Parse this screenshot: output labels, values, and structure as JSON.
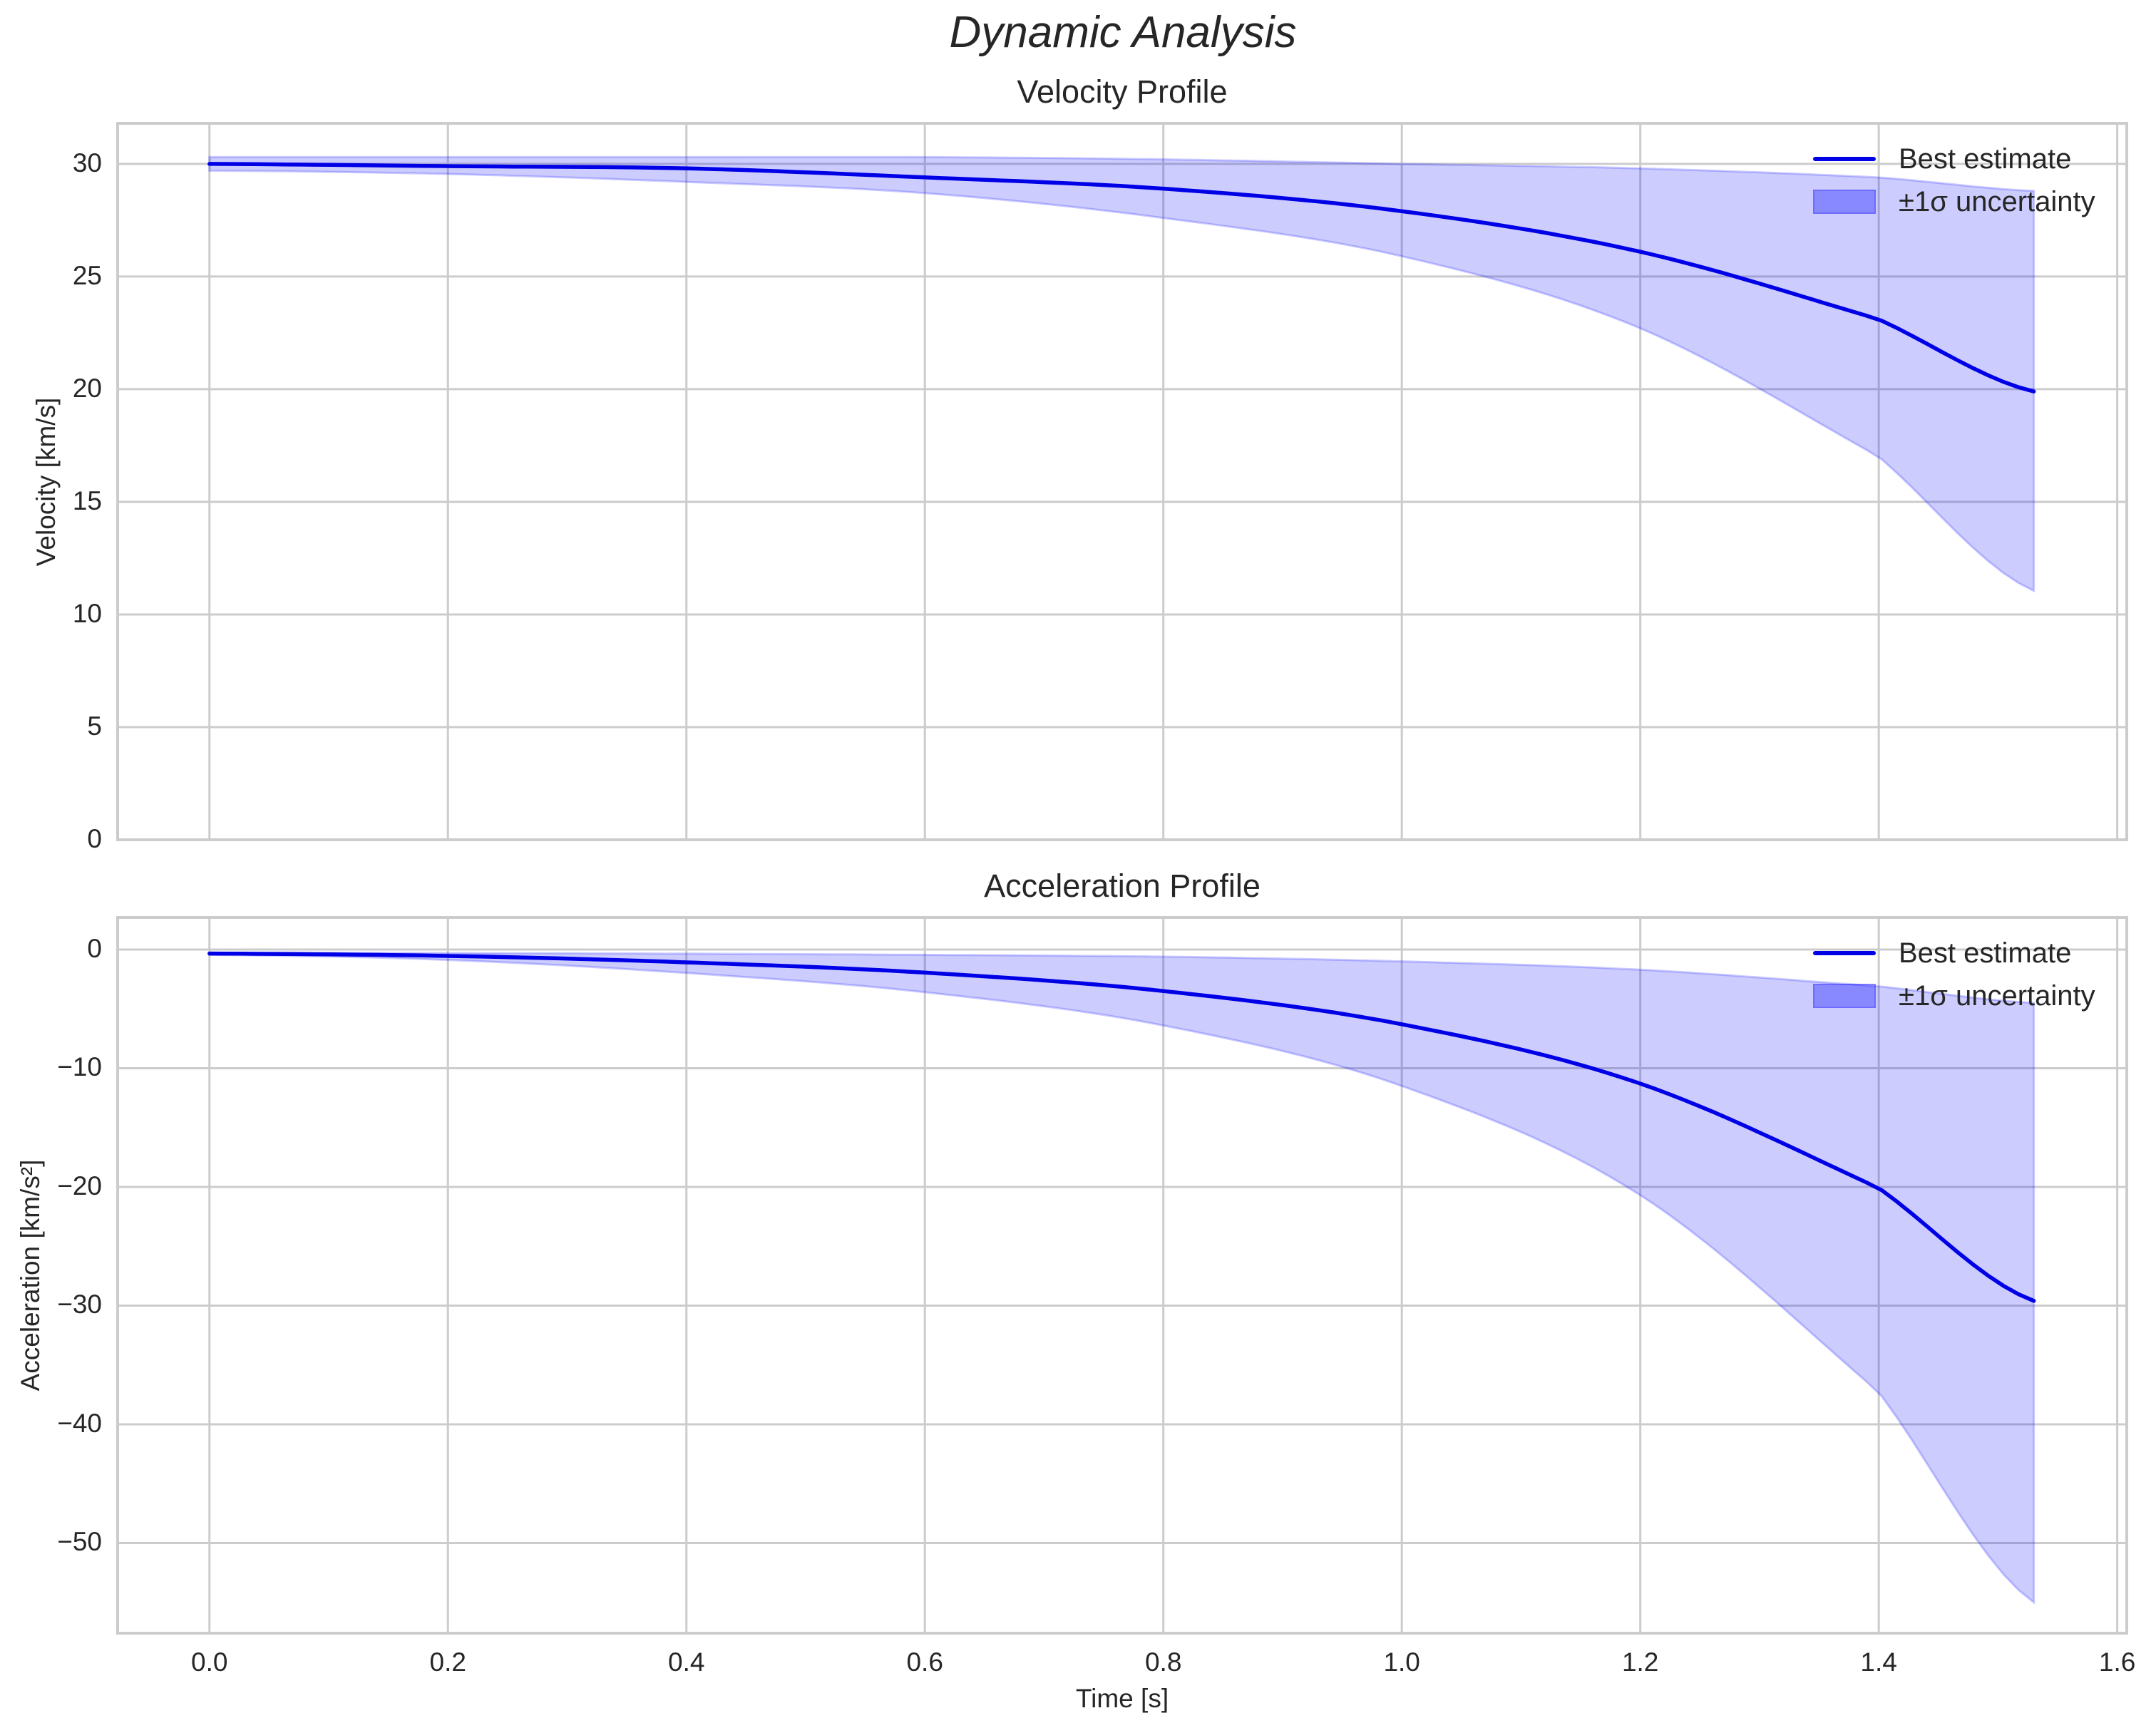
{
  "figure": {
    "title": "Dynamic Analysis"
  },
  "colors": {
    "line": "#0000e6",
    "fill": "#0000ff",
    "fill_opacity": 0.2,
    "grid": "#cccccc",
    "frame": "#cccccc",
    "text": "#262626"
  },
  "legend": {
    "line_label": "Best estimate",
    "band_label": "±1σ uncertainty"
  },
  "chart_data": [
    {
      "type": "line",
      "title": "Velocity Profile",
      "xlabel": "",
      "ylabel": "Velocity [km/s]",
      "xlim": [
        -0.077,
        1.608
      ],
      "ylim": [
        0,
        31.8
      ],
      "xticks": [
        0.0,
        0.2,
        0.4,
        0.6,
        0.8,
        1.0,
        1.2,
        1.4,
        1.6
      ],
      "xtick_labels": [
        "0.0",
        "0.2",
        "0.4",
        "0.6",
        "0.8",
        "1.0",
        "1.2",
        "1.4",
        "1.6"
      ],
      "show_xtick_labels": false,
      "yticks": [
        0,
        5,
        10,
        15,
        20,
        25,
        30
      ],
      "ytick_labels": [
        "0",
        "5",
        "10",
        "15",
        "20",
        "25",
        "30"
      ],
      "grid": true,
      "legend_position": "upper right",
      "x": [
        0.0,
        0.2,
        0.4,
        0.6,
        0.8,
        1.0,
        1.2,
        1.4,
        1.53
      ],
      "series": [
        {
          "name": "Best estimate",
          "kind": "line",
          "values": [
            30.0,
            29.9,
            29.8,
            29.4,
            28.9,
            27.9,
            26.1,
            23.1,
            19.9
          ]
        },
        {
          "name": "±1σ uncertainty (upper)",
          "kind": "band_upper",
          "values": [
            30.3,
            30.3,
            30.3,
            30.3,
            30.2,
            30.0,
            29.8,
            29.4,
            28.8
          ]
        },
        {
          "name": "±1σ uncertainty (lower)",
          "kind": "band_lower",
          "values": [
            29.7,
            29.55,
            29.2,
            28.7,
            27.6,
            25.9,
            22.7,
            17.0,
            11.05
          ]
        }
      ]
    },
    {
      "type": "line",
      "title": "Acceleration Profile",
      "xlabel": "Time [s]",
      "ylabel": "Acceleration [km/s²]",
      "xlim": [
        -0.077,
        1.608
      ],
      "ylim": [
        -57.6,
        2.7
      ],
      "xticks": [
        0.0,
        0.2,
        0.4,
        0.6,
        0.8,
        1.0,
        1.2,
        1.4,
        1.6
      ],
      "xtick_labels": [
        "0.0",
        "0.2",
        "0.4",
        "0.6",
        "0.8",
        "1.0",
        "1.2",
        "1.4",
        "1.6"
      ],
      "show_xtick_labels": true,
      "yticks": [
        0,
        -10,
        -20,
        -30,
        -40,
        -50
      ],
      "ytick_labels": [
        "0",
        "−10",
        "−20",
        "−30",
        "−40",
        "−50"
      ],
      "grid": true,
      "legend_position": "upper right",
      "x": [
        0.0,
        0.2,
        0.4,
        0.6,
        0.8,
        1.0,
        1.2,
        1.4,
        1.53
      ],
      "series": [
        {
          "name": "Best estimate",
          "kind": "line",
          "values": [
            -0.34,
            -0.54,
            -1.08,
            -1.95,
            -3.5,
            -6.3,
            -11.3,
            -20.1,
            -29.6
          ]
        },
        {
          "name": "±1σ uncertainty (upper)",
          "kind": "band_upper",
          "values": [
            -0.25,
            -0.3,
            -0.35,
            -0.45,
            -0.6,
            -1.0,
            -1.7,
            -3.1,
            -4.5
          ]
        },
        {
          "name": "±1σ uncertainty (lower)",
          "kind": "band_lower",
          "values": [
            -0.45,
            -0.88,
            -1.98,
            -3.6,
            -6.4,
            -11.5,
            -20.7,
            -37.3,
            -55.0
          ]
        }
      ]
    }
  ]
}
